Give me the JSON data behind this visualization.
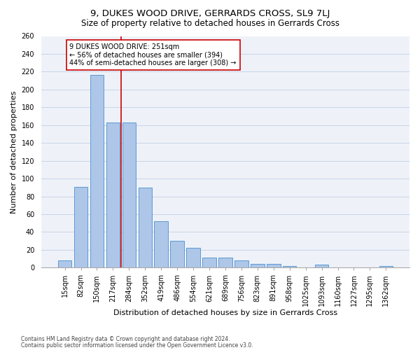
{
  "title": "9, DUKES WOOD DRIVE, GERRARDS CROSS, SL9 7LJ",
  "subtitle": "Size of property relative to detached houses in Gerrards Cross",
  "xlabel": "Distribution of detached houses by size in Gerrards Cross",
  "ylabel": "Number of detached properties",
  "footnote1": "Contains HM Land Registry data © Crown copyright and database right 2024.",
  "footnote2": "Contains public sector information licensed under the Open Government Licence v3.0.",
  "categories": [
    "15sqm",
    "82sqm",
    "150sqm",
    "217sqm",
    "284sqm",
    "352sqm",
    "419sqm",
    "486sqm",
    "554sqm",
    "621sqm",
    "689sqm",
    "756sqm",
    "823sqm",
    "891sqm",
    "958sqm",
    "1025sqm",
    "1093sqm",
    "1160sqm",
    "1227sqm",
    "1295sqm",
    "1362sqm"
  ],
  "values": [
    8,
    91,
    216,
    163,
    163,
    90,
    52,
    30,
    22,
    11,
    11,
    8,
    4,
    4,
    2,
    0,
    3,
    0,
    0,
    0,
    2
  ],
  "bar_color": "#aec6e8",
  "bar_edge_color": "#5b9bd5",
  "vline_color": "#cc0000",
  "annotation_text": "9 DUKES WOOD DRIVE: 251sqm\n← 56% of detached houses are smaller (394)\n44% of semi-detached houses are larger (308) →",
  "box_color": "#cc0000",
  "ylim": [
    0,
    260
  ],
  "yticks": [
    0,
    20,
    40,
    60,
    80,
    100,
    120,
    140,
    160,
    180,
    200,
    220,
    240,
    260
  ],
  "grid_color": "#c8d4e8",
  "bg_color": "#eef2f8",
  "title_fontsize": 9.5,
  "subtitle_fontsize": 8.5,
  "ylabel_fontsize": 8,
  "xlabel_fontsize": 8,
  "tick_fontsize": 7,
  "annot_fontsize": 7,
  "footnote_fontsize": 5.5
}
